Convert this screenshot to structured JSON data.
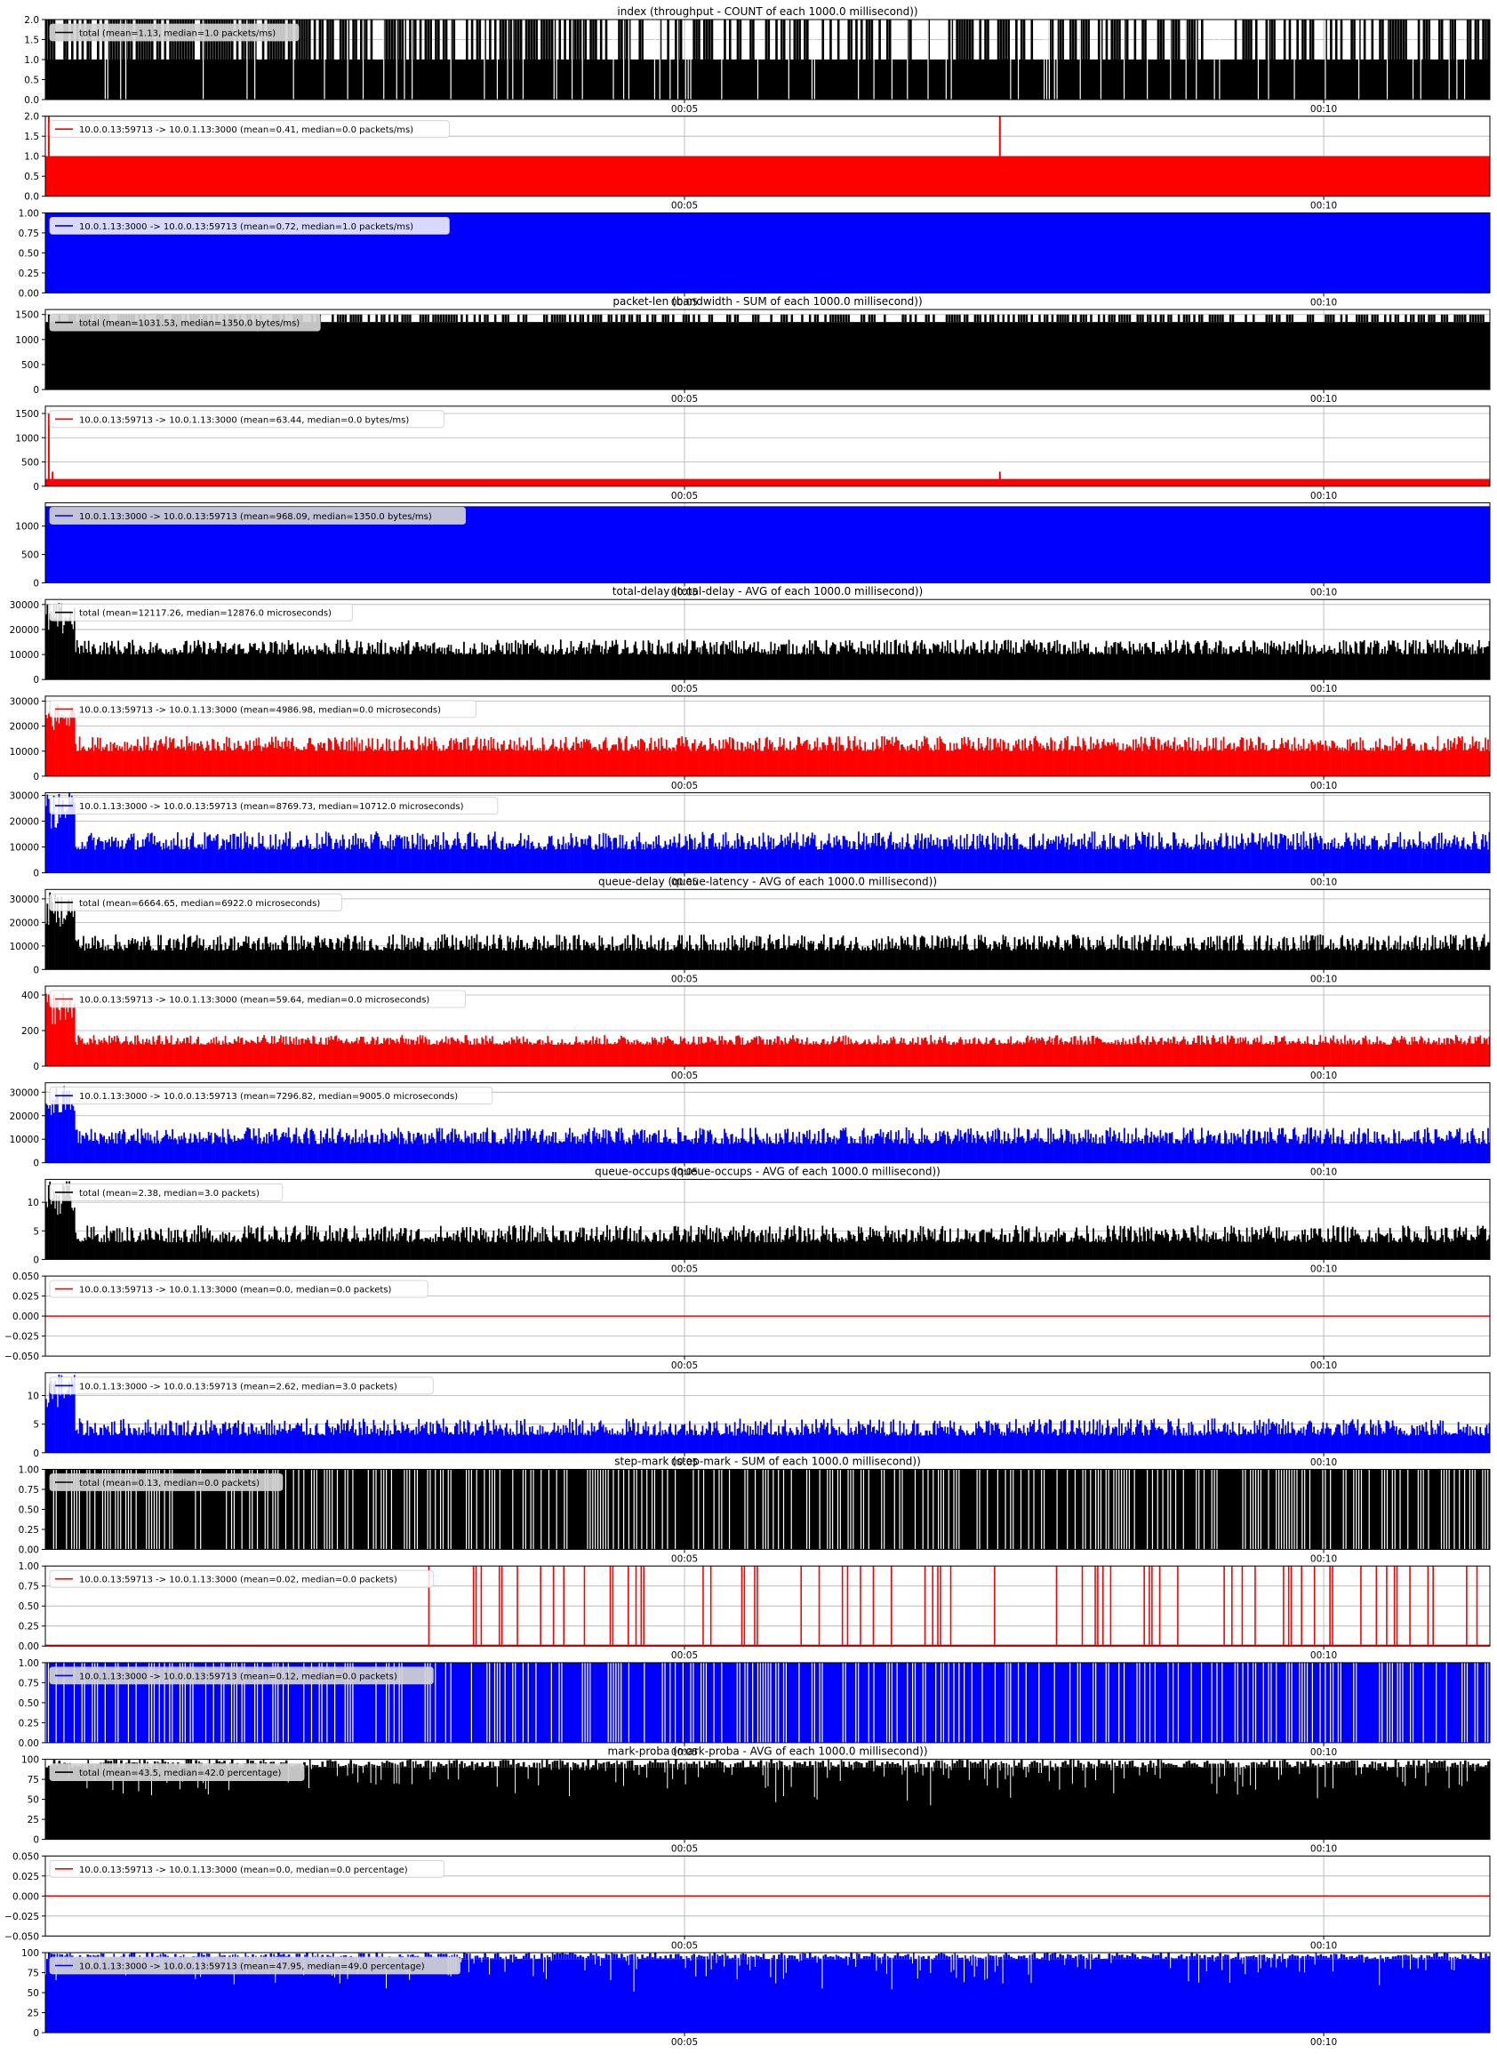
{
  "chart_data": [
    {
      "type": "bar",
      "title": "index (throughput - COUNT of each 1000.0 millisecond))",
      "series": [
        {
          "name": "total (mean=1.13, median=1.0 packets/ms)",
          "color": "#000000"
        }
      ],
      "ylim": [
        0,
        2
      ],
      "yticks": [
        0.0,
        0.5,
        1.0,
        1.5,
        2.0
      ],
      "ytick_labels": [
        "0.0",
        "0.5",
        "1.0",
        "1.5",
        "2.0"
      ],
      "xticks": [
        "00:05",
        "00:10"
      ],
      "xtick_values": [
        5,
        10
      ],
      "xlim": [
        0,
        11.3
      ],
      "baseline": 1,
      "peak": 2,
      "pattern": "binary-dense",
      "density": 0.13,
      "legend_shaded": true
    },
    {
      "type": "bar",
      "series": [
        {
          "name": "10.0.0.13:59713 -> 10.0.1.13:3000 (mean=0.41, median=0.0 packets/ms)",
          "color": "#ff0000"
        }
      ],
      "ylim": [
        0,
        2
      ],
      "yticks": [
        0.0,
        0.5,
        1.0,
        1.5,
        2.0
      ],
      "ytick_labels": [
        "0.0",
        "0.5",
        "1.0",
        "1.5",
        "2.0"
      ],
      "xticks": [
        "00:05",
        "00:10"
      ],
      "xtick_values": [
        5,
        10
      ],
      "xlim": [
        0,
        11.3
      ],
      "baseline": 1,
      "spikes": [
        {
          "x": 0.02,
          "y": 2
        },
        {
          "x": 7.46,
          "y": 2
        }
      ],
      "pattern": "flat"
    },
    {
      "type": "bar",
      "series": [
        {
          "name": "10.0.1.13:3000 -> 10.0.0.13:59713 (mean=0.72, median=1.0 packets/ms)",
          "color": "#0000ff"
        }
      ],
      "ylim": [
        0,
        1
      ],
      "yticks": [
        0.0,
        0.25,
        0.5,
        0.75,
        1.0
      ],
      "ytick_labels": [
        "0.00",
        "0.25",
        "0.50",
        "0.75",
        "1.00"
      ],
      "xticks": [
        "00:05",
        "00:10"
      ],
      "xtick_values": [
        5,
        10
      ],
      "xlim": [
        0,
        11.3
      ],
      "baseline": 1,
      "pattern": "flat"
    },
    {
      "type": "bar",
      "title": "packet-len (bandwidth - SUM of each 1000.0 millisecond))",
      "series": [
        {
          "name": "total (mean=1031.53, median=1350.0 bytes/ms)",
          "color": "#000000"
        }
      ],
      "ylim": [
        0,
        1600
      ],
      "yticks": [
        0,
        500,
        1000,
        1500
      ],
      "ytick_labels": [
        "0",
        "500",
        "1000",
        "1500"
      ],
      "xticks": [
        "00:05",
        "00:10"
      ],
      "xtick_values": [
        5,
        10
      ],
      "xlim": [
        0,
        11.3
      ],
      "baseline": 1350,
      "peak": 1500,
      "pattern": "top-spikes",
      "density": 0.55,
      "legend_shaded": true
    },
    {
      "type": "bar",
      "series": [
        {
          "name": "10.0.0.13:59713 -> 10.0.1.13:3000 (mean=63.44, median=0.0 bytes/ms)",
          "color": "#ff0000"
        }
      ],
      "ylim": [
        0,
        1650
      ],
      "yticks": [
        0,
        500,
        1000,
        1500
      ],
      "ytick_labels": [
        "0",
        "500",
        "1000",
        "1500"
      ],
      "xticks": [
        "00:05",
        "00:10"
      ],
      "xtick_values": [
        5,
        10
      ],
      "xlim": [
        0,
        11.3
      ],
      "baseline": 150,
      "spikes": [
        {
          "x": 0.02,
          "y": 1500
        },
        {
          "x": 0.05,
          "y": 300
        },
        {
          "x": 7.46,
          "y": 300
        }
      ],
      "pattern": "flat"
    },
    {
      "type": "bar",
      "series": [
        {
          "name": "10.0.1.13:3000 -> 10.0.0.13:59713 (mean=968.09, median=1350.0 bytes/ms)",
          "color": "#0000ff"
        }
      ],
      "ylim": [
        0,
        1410
      ],
      "yticks": [
        0,
        500,
        1000
      ],
      "ytick_labels": [
        "0",
        "500",
        "1000"
      ],
      "xticks": [
        "00:05",
        "00:10"
      ],
      "xtick_values": [
        5,
        10
      ],
      "xlim": [
        0,
        11.3
      ],
      "baseline": 1350,
      "pattern": "flat",
      "legend_shaded": true
    },
    {
      "type": "bar",
      "title": "total-delay (total-delay - AVG of each 1000.0 millisecond))",
      "series": [
        {
          "name": "total (mean=12117.26, median=12876.0 microseconds)",
          "color": "#000000"
        }
      ],
      "ylim": [
        0,
        32000
      ],
      "yticks": [
        0,
        10000,
        20000,
        30000
      ],
      "ytick_labels": [
        "0",
        "10000",
        "20000",
        "30000"
      ],
      "xticks": [
        "00:05",
        "00:10"
      ],
      "xtick_values": [
        5,
        10
      ],
      "xlim": [
        0,
        11.3
      ],
      "baseline": 12000,
      "peak": 31000,
      "pattern": "noisy",
      "noise_lo": 10000,
      "noise_hi": 16000
    },
    {
      "type": "bar",
      "series": [
        {
          "name": "10.0.0.13:59713 -> 10.0.1.13:3000 (mean=4986.98, median=0.0 microseconds)",
          "color": "#ff0000"
        }
      ],
      "ylim": [
        0,
        32000
      ],
      "yticks": [
        0,
        10000,
        20000,
        30000
      ],
      "ytick_labels": [
        "0",
        "10000",
        "20000",
        "30000"
      ],
      "xticks": [
        "00:05",
        "00:10"
      ],
      "xtick_values": [
        5,
        10
      ],
      "xlim": [
        0,
        11.3
      ],
      "baseline": 11000,
      "peak": 30000,
      "pattern": "noisy",
      "noise_lo": 10000,
      "noise_hi": 16000
    },
    {
      "type": "bar",
      "series": [
        {
          "name": "10.0.1.13:3000 -> 10.0.0.13:59713 (mean=8769.73, median=10712.0 microseconds)",
          "color": "#0000ff"
        }
      ],
      "ylim": [
        0,
        31000
      ],
      "yticks": [
        0,
        10000,
        20000,
        30000
      ],
      "ytick_labels": [
        "0",
        "10000",
        "20000",
        "30000"
      ],
      "xticks": [
        "00:05",
        "00:10"
      ],
      "xtick_values": [
        5,
        10
      ],
      "xlim": [
        0,
        11.3
      ],
      "baseline": 12000,
      "peak": 31000,
      "pattern": "noisy",
      "noise_lo": 9000,
      "noise_hi": 16000
    },
    {
      "type": "bar",
      "title": "queue-delay (queue-latency - AVG of each 1000.0 millisecond))",
      "series": [
        {
          "name": "total (mean=6664.65, median=6922.0 microseconds)",
          "color": "#000000"
        }
      ],
      "ylim": [
        0,
        34000
      ],
      "yticks": [
        0,
        10000,
        20000,
        30000
      ],
      "ytick_labels": [
        "0",
        "10000",
        "20000",
        "30000"
      ],
      "xticks": [
        "00:05",
        "00:10"
      ],
      "xtick_values": [
        5,
        10
      ],
      "xlim": [
        0,
        11.3
      ],
      "baseline": 11000,
      "peak": 33000,
      "pattern": "noisy",
      "noise_lo": 8000,
      "noise_hi": 15000
    },
    {
      "type": "bar",
      "series": [
        {
          "name": "10.0.0.13:59713 -> 10.0.1.13:3000 (mean=59.64, median=0.0 microseconds)",
          "color": "#ff0000"
        }
      ],
      "ylim": [
        0,
        450
      ],
      "yticks": [
        0,
        200,
        400
      ],
      "ytick_labels": [
        "0",
        "200",
        "400"
      ],
      "xticks": [
        "00:05",
        "00:10"
      ],
      "xtick_values": [
        5,
        10
      ],
      "xlim": [
        0,
        11.3
      ],
      "baseline": 140,
      "peak": 420,
      "pattern": "noisy",
      "noise_lo": 120,
      "noise_hi": 175
    },
    {
      "type": "bar",
      "series": [
        {
          "name": "10.0.1.13:3000 -> 10.0.0.13:59713 (mean=7296.82, median=9005.0 microseconds)",
          "color": "#0000ff"
        }
      ],
      "ylim": [
        0,
        34000
      ],
      "yticks": [
        0,
        10000,
        20000,
        30000
      ],
      "ytick_labels": [
        "0",
        "10000",
        "20000",
        "30000"
      ],
      "xticks": [
        "00:05",
        "00:10"
      ],
      "xtick_values": [
        5,
        10
      ],
      "xlim": [
        0,
        11.3
      ],
      "baseline": 11000,
      "peak": 33000,
      "pattern": "noisy",
      "noise_lo": 8000,
      "noise_hi": 15000
    },
    {
      "type": "bar",
      "title": "queue-occups (queue-occups - AVG of each 1000.0 millisecond))",
      "series": [
        {
          "name": "total (mean=2.38, median=3.0 packets)",
          "color": "#000000"
        }
      ],
      "ylim": [
        0,
        14
      ],
      "yticks": [
        0,
        5,
        10
      ],
      "ytick_labels": [
        "0",
        "5",
        "10"
      ],
      "xticks": [
        "00:05",
        "00:10"
      ],
      "xtick_values": [
        5,
        10
      ],
      "xlim": [
        0,
        11.3
      ],
      "baseline": 4,
      "peak": 14,
      "pattern": "noisy",
      "noise_lo": 3,
      "noise_hi": 6
    },
    {
      "type": "line",
      "series": [
        {
          "name": "10.0.0.13:59713 -> 10.0.1.13:3000 (mean=0.0, median=0.0 packets)",
          "color": "#ff0000"
        }
      ],
      "ylim": [
        -0.05,
        0.05
      ],
      "yticks": [
        -0.05,
        -0.025,
        0.0,
        0.025,
        0.05
      ],
      "ytick_labels": [
        "−0.050",
        "−0.025",
        "0.000",
        "0.025",
        "0.050"
      ],
      "xticks": [
        "00:05",
        "00:10"
      ],
      "xtick_values": [
        5,
        10
      ],
      "xlim": [
        0,
        11.3
      ],
      "value": 0.0
    },
    {
      "type": "bar",
      "series": [
        {
          "name": "10.0.1.13:3000 -> 10.0.0.13:59713 (mean=2.62, median=3.0 packets)",
          "color": "#0000ff"
        }
      ],
      "ylim": [
        0,
        14
      ],
      "yticks": [
        0,
        5,
        10
      ],
      "ytick_labels": [
        "0",
        "5",
        "10"
      ],
      "xticks": [
        "00:05",
        "00:10"
      ],
      "xtick_values": [
        5,
        10
      ],
      "xlim": [
        0,
        11.3
      ],
      "baseline": 4,
      "peak": 14,
      "pattern": "noisy",
      "noise_lo": 3,
      "noise_hi": 6
    },
    {
      "type": "bar",
      "title": "step-mark (step-mark - SUM of each 1000.0 millisecond))",
      "series": [
        {
          "name": "total (mean=0.13, median=0.0 packets)",
          "color": "#000000"
        }
      ],
      "ylim": [
        0,
        1
      ],
      "yticks": [
        0.0,
        0.25,
        0.5,
        0.75,
        1.0
      ],
      "ytick_labels": [
        "0.00",
        "0.25",
        "0.50",
        "0.75",
        "1.00"
      ],
      "xticks": [
        "00:05",
        "00:10"
      ],
      "xtick_values": [
        5,
        10
      ],
      "xlim": [
        0,
        11.3
      ],
      "baseline": 1,
      "pattern": "binary-gaps",
      "density": 0.45,
      "legend_shaded": true
    },
    {
      "type": "bar",
      "series": [
        {
          "name": "10.0.0.13:59713 -> 10.0.1.13:3000 (mean=0.02, median=0.0 packets)",
          "color": "#ff0000"
        }
      ],
      "ylim": [
        0,
        1
      ],
      "yticks": [
        0.0,
        0.25,
        0.5,
        0.75,
        1.0
      ],
      "ytick_labels": [
        "0.00",
        "0.25",
        "0.50",
        "0.75",
        "1.00"
      ],
      "xticks": [
        "00:05",
        "00:10"
      ],
      "xtick_values": [
        5,
        10
      ],
      "xlim": [
        0,
        11.3
      ],
      "pattern": "sparse-lines",
      "density": 0.07,
      "start": 3.0
    },
    {
      "type": "bar",
      "series": [
        {
          "name": "10.0.1.13:3000 -> 10.0.0.13:59713 (mean=0.12, median=0.0 packets)",
          "color": "#0000ff"
        }
      ],
      "ylim": [
        0,
        1
      ],
      "yticks": [
        0.0,
        0.25,
        0.5,
        0.75,
        1.0
      ],
      "ytick_labels": [
        "0.00",
        "0.25",
        "0.50",
        "0.75",
        "1.00"
      ],
      "xticks": [
        "00:05",
        "00:10"
      ],
      "xtick_values": [
        5,
        10
      ],
      "xlim": [
        0,
        11.3
      ],
      "baseline": 1,
      "pattern": "binary-gaps",
      "density": 0.4,
      "legend_shaded": true
    },
    {
      "type": "bar",
      "title": "mark-proba (mark-proba - AVG of each 1000.0 millisecond))",
      "series": [
        {
          "name": "total (mean=43.5, median=42.0 percentage)",
          "color": "#000000"
        }
      ],
      "ylim": [
        0,
        100
      ],
      "yticks": [
        0,
        25,
        50,
        75,
        100
      ],
      "ytick_labels": [
        "0",
        "25",
        "50",
        "75",
        "100"
      ],
      "xticks": [
        "00:05",
        "00:10"
      ],
      "xtick_values": [
        5,
        10
      ],
      "xlim": [
        0,
        11.3
      ],
      "baseline": 90,
      "peak": 100,
      "pattern": "dips",
      "density": 0.3,
      "dip_lo": 40,
      "legend_shaded": true
    },
    {
      "type": "line",
      "series": [
        {
          "name": "10.0.0.13:59713 -> 10.0.1.13:3000 (mean=0.0, median=0.0 percentage)",
          "color": "#ff0000"
        }
      ],
      "ylim": [
        -0.05,
        0.05
      ],
      "yticks": [
        -0.05,
        -0.025,
        0.0,
        0.025,
        0.05
      ],
      "ytick_labels": [
        "−0.050",
        "−0.025",
        "0.000",
        "0.025",
        "0.050"
      ],
      "xticks": [
        "00:05",
        "00:10"
      ],
      "xtick_values": [
        5,
        10
      ],
      "xlim": [
        0,
        11.3
      ],
      "value": 0.0
    },
    {
      "type": "bar",
      "series": [
        {
          "name": "10.0.1.13:3000 -> 10.0.0.13:59713 (mean=47.95, median=49.0 percentage)",
          "color": "#0000ff"
        }
      ],
      "ylim": [
        0,
        100
      ],
      "yticks": [
        0,
        25,
        50,
        75,
        100
      ],
      "ytick_labels": [
        "0",
        "25",
        "50",
        "75",
        "100"
      ],
      "xticks": [
        "00:05",
        "00:10"
      ],
      "xtick_values": [
        5,
        10
      ],
      "xlim": [
        0,
        11.3
      ],
      "baseline": 92,
      "peak": 100,
      "pattern": "dips",
      "density": 0.25,
      "dip_lo": 45,
      "legend_shaded": true
    }
  ]
}
